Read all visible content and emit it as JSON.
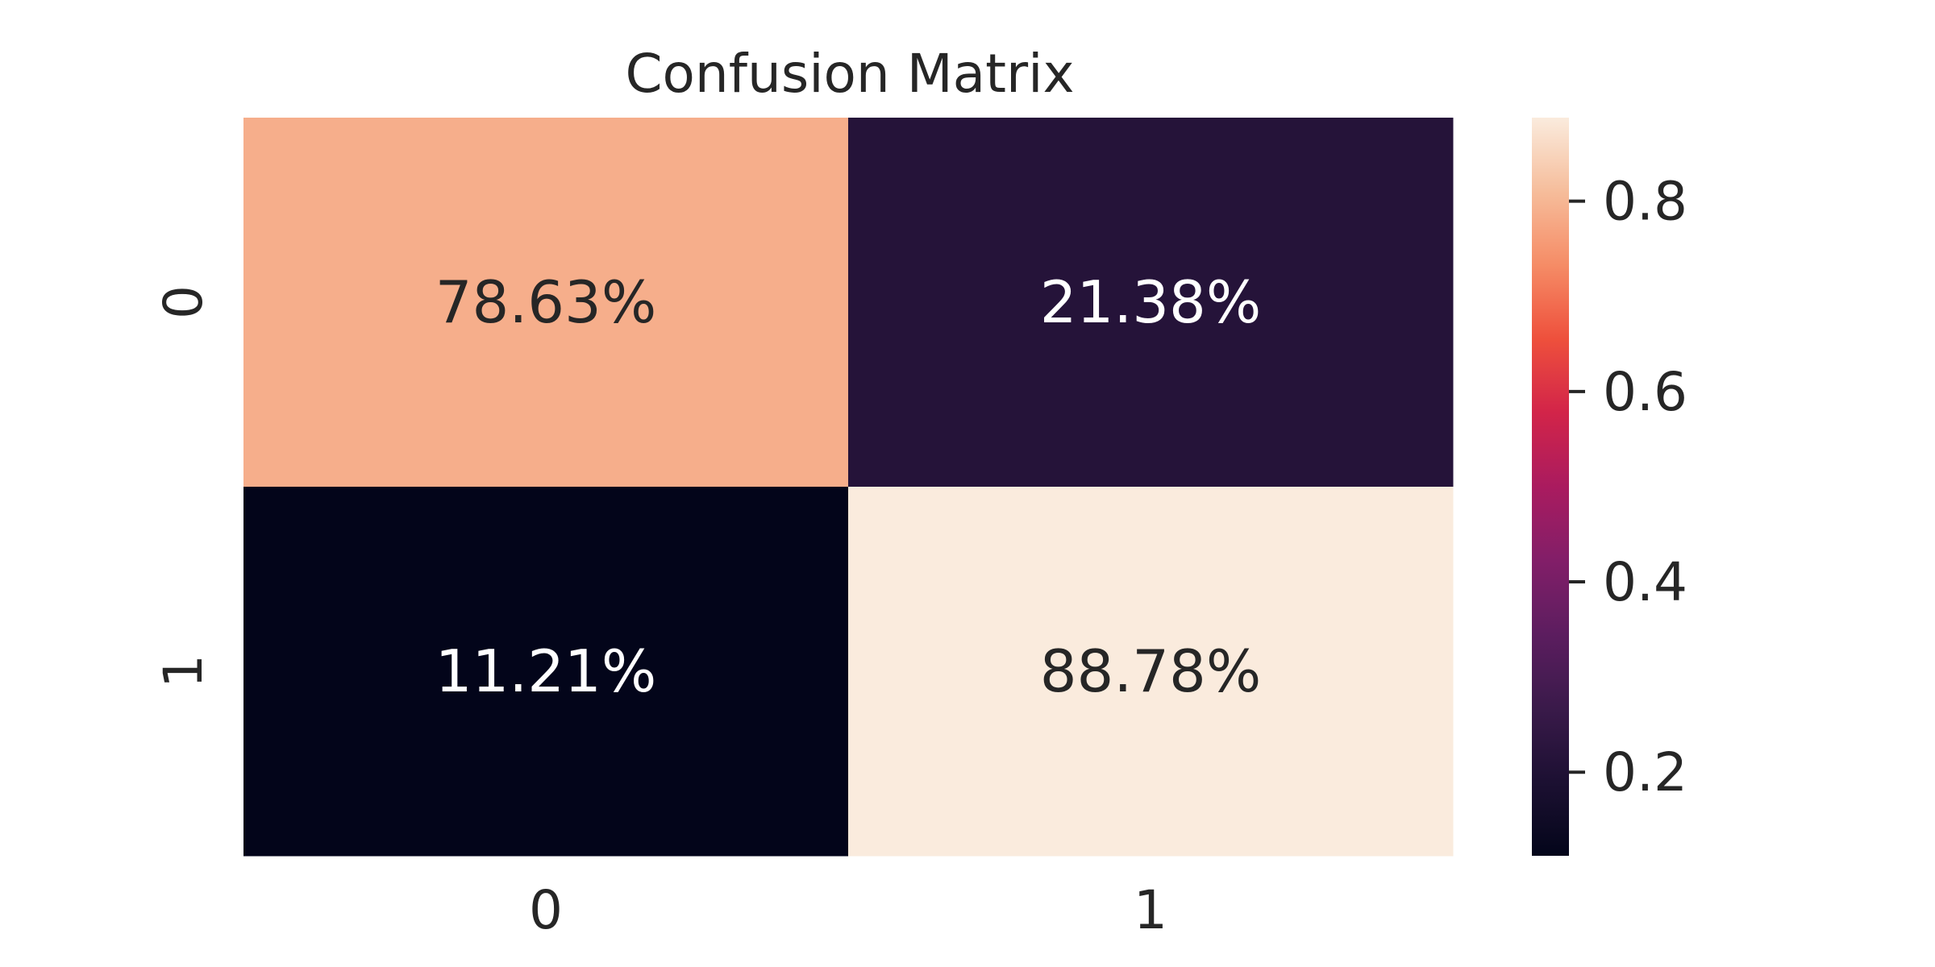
{
  "chart_data": {
    "type": "heatmap",
    "title": "Confusion Matrix",
    "x_categories": [
      "0",
      "1"
    ],
    "y_categories": [
      "0",
      "1"
    ],
    "values": [
      [
        0.7863,
        0.2138
      ],
      [
        0.1121,
        0.8878
      ]
    ],
    "cell_labels": [
      [
        "78.63%",
        "21.38%"
      ],
      [
        "11.21%",
        "88.78%"
      ]
    ],
    "colorbar": {
      "range": [
        0.1121,
        0.8878
      ],
      "ticks": [
        0.2,
        0.4,
        0.6,
        0.8
      ],
      "tick_labels": [
        "0.2",
        "0.4",
        "0.6",
        "0.8"
      ]
    },
    "colormap": "rocket",
    "colors": {
      "text_dark": "#262626",
      "text_light": "#ffffff"
    }
  }
}
